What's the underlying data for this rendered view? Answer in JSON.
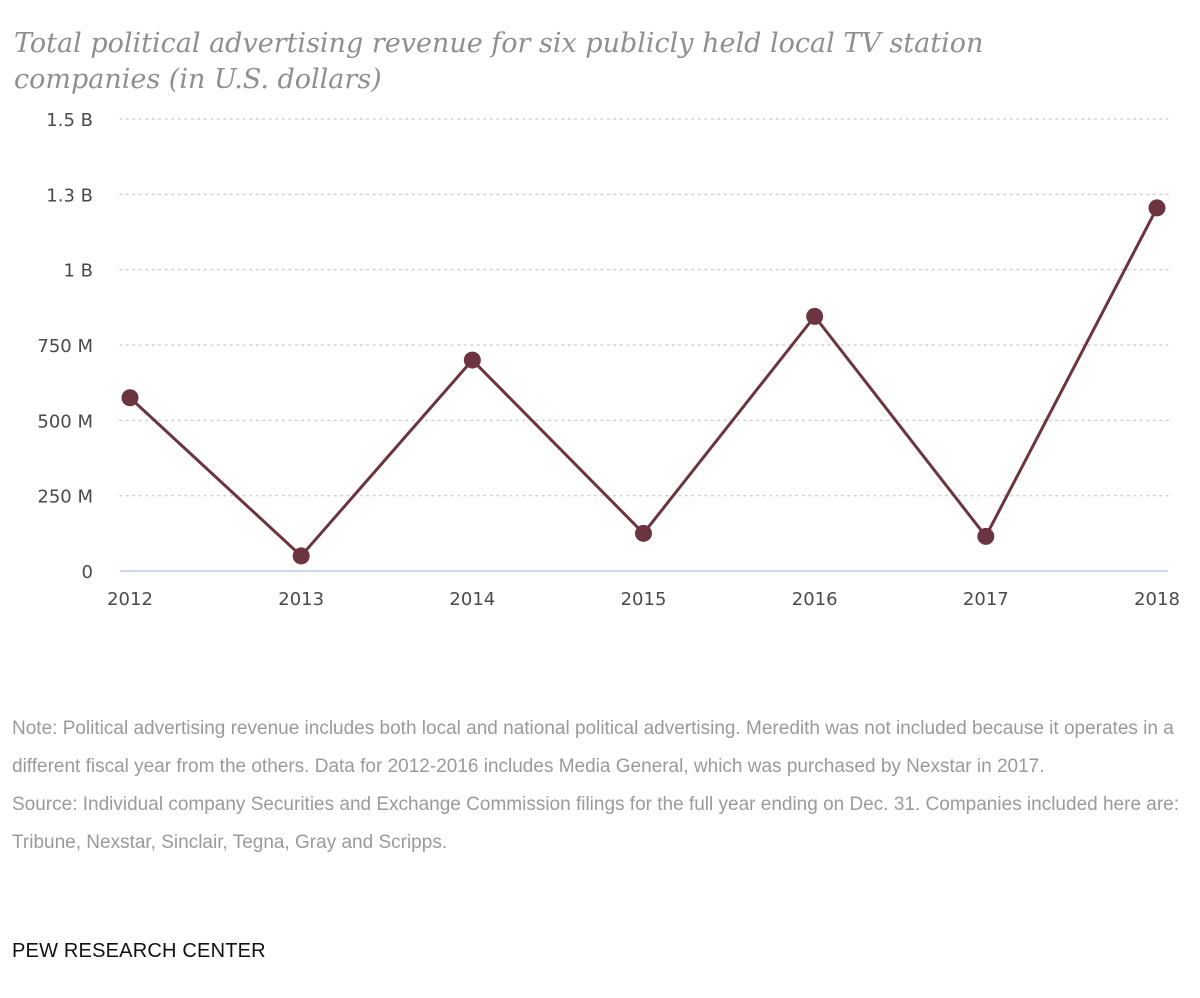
{
  "chart_data": {
    "type": "line",
    "title": "Total political advertising revenue for six publicly held local TV station companies (in U.S. dollars)",
    "x": [
      "2012",
      "2013",
      "2014",
      "2015",
      "2016",
      "2017",
      "2018"
    ],
    "series": [
      {
        "values": [
          575000000,
          50000000,
          700000000,
          125000000,
          845000000,
          115000000,
          1205000000
        ]
      }
    ],
    "ylim": [
      0,
      1500000000
    ],
    "yticks": [
      {
        "value": 0,
        "label": "0"
      },
      {
        "value": 250000000,
        "label": "250 M"
      },
      {
        "value": 500000000,
        "label": "500 M"
      },
      {
        "value": 750000000,
        "label": "750 M"
      },
      {
        "value": 1000000000,
        "label": "1 B"
      },
      {
        "value": 1250000000,
        "label": "1.3 B"
      },
      {
        "value": 1500000000,
        "label": "1.5 B"
      }
    ],
    "grid": "horizontal-dotted",
    "colors": {
      "line": "#6b3440",
      "grid": "#cfcfcf",
      "baseline": "#b8c8e8"
    }
  },
  "notes": {
    "note": "Note: Political advertising revenue includes both local and national political advertising. Meredith was not included because it operates in a different fiscal year from the others. Data for 2012-2016 includes Media General, which was purchased by Nexstar in 2017.",
    "source": "Source: Individual company Securities and Exchange Commission filings for the full year ending on Dec. 31. Companies included here are: Tribune, Nexstar, Sinclair, Tegna, Gray and Scripps."
  },
  "brand": "PEW RESEARCH CENTER"
}
